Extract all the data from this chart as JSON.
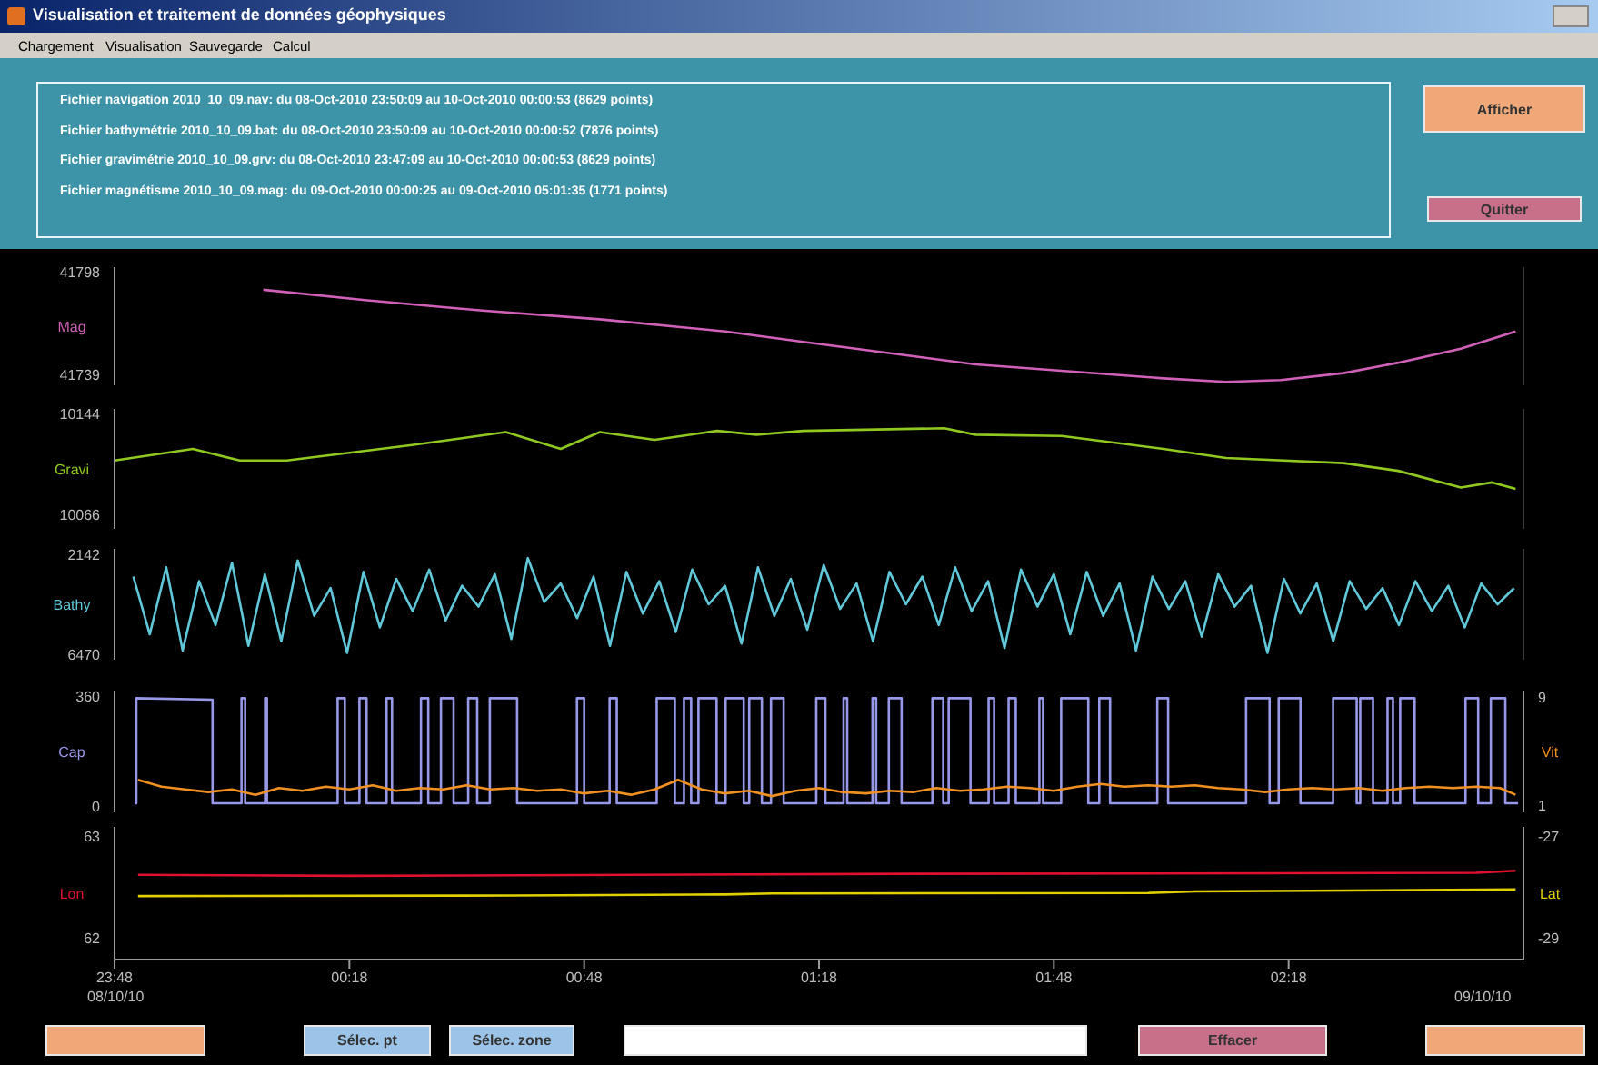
{
  "chart_data": [
    {
      "type": "line",
      "title": "Visualisation et traitement de données géophysiques",
      "ylabel": "Mag",
      "tick_labels": "y",
      "xlim": [
        "2010-10-08T23:48",
        "2010-10-09T02:48"
      ],
      "ylim": [
        41733,
        41801
      ],
      "yticks": [
        41739,
        41798
      ],
      "annotations": [
        "Chargement",
        "Visualisation",
        "Sauvegarde",
        "Calcul",
        "Fichier navigation  2010_10_09.nav: du 08-Oct-2010 23:50:09 au 10-Oct-2010 00:00:53  (8629 points)",
        "Fichier bathymétrie  2010_10_09.bat: du 08-Oct-2010 23:50:09 au 10-Oct-2010 00:00:52  (7876 points)",
        "Fichier gravimétrie  2010_10_09.grv: du 08-Oct-2010 23:47:09 au 10-Oct-2010 00:00:53  (8629 points)",
        "Fichier magnétisme 2010_10_09.mag: du 09-Oct-2010 00:00:25 au 09-Oct-2010 05:01:35  (1771 points)",
        "Afficher",
        "Quitter",
        "Sélec. pt",
        "Sélec. zone",
        "Effacer"
      ],
      "series": [
        {
          "color": "#d060b8",
          "x": [
            "2010-10-09T00:07",
            "2010-10-09T00:20",
            "2010-10-09T00:35",
            "2010-10-09T00:50",
            "2010-10-09T01:06",
            "2010-10-09T01:16",
            "2010-10-09T01:38",
            "2010-10-09T02:02",
            "2010-10-09T02:10",
            "2010-10-09T02:17",
            "2010-10-09T02:25",
            "2010-10-09T02:32",
            "2010-10-09T02:40",
            "2010-10-09T02:47"
          ],
          "values": [
            41788,
            41782,
            41776,
            41771,
            41764,
            41758,
            41745,
            41737,
            41735,
            41736,
            41740,
            41746,
            41754,
            41764
          ]
        }
      ]
    },
    {
      "type": "line",
      "ylabel": "Gravi",
      "tick_labels": "y",
      "xlim": [
        "2010-10-08T23:48",
        "2010-10-09T02:48"
      ],
      "ylim": [
        10055,
        10148
      ],
      "yticks": [
        10066,
        10144
      ],
      "series": [
        {
          "color": "#90c820",
          "x": [
            "2010-10-08T23:48",
            "2010-10-08T23:58",
            "2010-10-09T00:04",
            "2010-10-09T00:10",
            "2010-10-09T00:26",
            "2010-10-09T00:38",
            "2010-10-09T00:45",
            "2010-10-09T00:50",
            "2010-10-09T00:57",
            "2010-10-09T01:05",
            "2010-10-09T01:10",
            "2010-10-09T01:16",
            "2010-10-09T01:34",
            "2010-10-09T01:38",
            "2010-10-09T01:49",
            "2010-10-09T02:02",
            "2010-10-09T02:10",
            "2010-10-09T02:25",
            "2010-10-09T02:32",
            "2010-10-09T02:40",
            "2010-10-09T02:44",
            "2010-10-09T02:47"
          ],
          "values": [
            10108,
            10117,
            10108,
            10108,
            10120,
            10130,
            10117,
            10130,
            10124,
            10131,
            10128,
            10131,
            10133,
            10128,
            10127,
            10117,
            10110,
            10106,
            10100,
            10087,
            10091,
            10086
          ]
        }
      ]
    },
    {
      "type": "line",
      "ylabel": "Bathy",
      "tick_labels": "y",
      "xlim": [
        "2010-10-08T23:48",
        "2010-10-09T02:48"
      ],
      "ylim": [
        6700,
        1900
      ],
      "yticks": [
        2142,
        6470
      ],
      "series": [
        {
          "color": "#60c8d8",
          "x": [
            "2010-10-08T23:50:24",
            "2010-10-08T23:52:30",
            "2010-10-08T23:54:36",
            "2010-10-08T23:56:42",
            "2010-10-08T23:58:48",
            "2010-10-09T00:00:54",
            "2010-10-09T00:03:00",
            "2010-10-09T00:05:06",
            "2010-10-09T00:07:12",
            "2010-10-09T00:09:18",
            "2010-10-09T00:11:24",
            "2010-10-09T00:13:30",
            "2010-10-09T00:15:36",
            "2010-10-09T00:17:42",
            "2010-10-09T00:19:48",
            "2010-10-09T00:21:54",
            "2010-10-09T00:24:00",
            "2010-10-09T00:26:06",
            "2010-10-09T00:28:12",
            "2010-10-09T00:30:18",
            "2010-10-09T00:32:24",
            "2010-10-09T00:34:30",
            "2010-10-09T00:36:36",
            "2010-10-09T00:38:42",
            "2010-10-09T00:40:48",
            "2010-10-09T00:42:54",
            "2010-10-09T00:45:00",
            "2010-10-09T00:47:06",
            "2010-10-09T00:49:12",
            "2010-10-09T00:51:18",
            "2010-10-09T00:53:24",
            "2010-10-09T00:55:30",
            "2010-10-09T00:57:36",
            "2010-10-09T00:59:42",
            "2010-10-09T01:01:48",
            "2010-10-09T01:03:54",
            "2010-10-09T01:06:00",
            "2010-10-09T01:08:06",
            "2010-10-09T01:10:12",
            "2010-10-09T01:12:18",
            "2010-10-09T01:14:24",
            "2010-10-09T01:16:30",
            "2010-10-09T01:18:36",
            "2010-10-09T01:20:42",
            "2010-10-09T01:22:48",
            "2010-10-09T01:24:54",
            "2010-10-09T01:27:00",
            "2010-10-09T01:29:06",
            "2010-10-09T01:31:12",
            "2010-10-09T01:33:18",
            "2010-10-09T01:35:24",
            "2010-10-09T01:37:30",
            "2010-10-09T01:39:36",
            "2010-10-09T01:41:42",
            "2010-10-09T01:43:48",
            "2010-10-09T01:45:54",
            "2010-10-09T01:48:00",
            "2010-10-09T01:50:06",
            "2010-10-09T01:52:12",
            "2010-10-09T01:54:18",
            "2010-10-09T01:56:24",
            "2010-10-09T01:58:30",
            "2010-10-09T02:00:36",
            "2010-10-09T02:02:42",
            "2010-10-09T02:04:48",
            "2010-10-09T02:06:54",
            "2010-10-09T02:09:00",
            "2010-10-09T02:11:06",
            "2010-10-09T02:13:12",
            "2010-10-09T02:15:18",
            "2010-10-09T02:17:24",
            "2010-10-09T02:19:30",
            "2010-10-09T02:21:36",
            "2010-10-09T02:23:42",
            "2010-10-09T02:25:48",
            "2010-10-09T02:27:54",
            "2010-10-09T02:30:00",
            "2010-10-09T02:32:06",
            "2010-10-09T02:34:12",
            "2010-10-09T02:36:18",
            "2010-10-09T02:38:24",
            "2010-10-09T02:40:30",
            "2010-10-09T02:42:36",
            "2010-10-09T02:44:42",
            "2010-10-09T02:46:48"
          ],
          "values": [
            3100,
            5600,
            2700,
            6300,
            3300,
            5200,
            2500,
            6100,
            3000,
            5900,
            2400,
            4800,
            3600,
            6400,
            2900,
            5300,
            3200,
            4600,
            2800,
            5000,
            3500,
            4400,
            3000,
            5800,
            2300,
            4200,
            3400,
            4900,
            3100,
            6100,
            2900,
            4700,
            3300,
            5500,
            2800,
            4300,
            3500,
            6000,
            2700,
            4800,
            3200,
            5400,
            2600,
            4500,
            3400,
            5900,
            2900,
            4300,
            3100,
            5200,
            2700,
            4600,
            3300,
            6200,
            2800,
            4400,
            3000,
            5600,
            2900,
            4800,
            3400,
            6300,
            3100,
            4500,
            3300,
            5700,
            3000,
            4400,
            3500,
            6400,
            3200,
            4700,
            3400,
            5900,
            3300,
            4500,
            3600,
            5200,
            3300,
            4600,
            3500,
            5300,
            3400,
            4300,
            3600
          ]
        }
      ]
    },
    {
      "type": "line",
      "ylabel": "Cap",
      "y2label": "Vit",
      "tick_labels": "y",
      "xlim": [
        "2010-10-08T23:48",
        "2010-10-09T02:48"
      ],
      "ylim": [
        -20,
        380
      ],
      "yticks": [
        0,
        360
      ],
      "y2lim": [
        0.5,
        9.5
      ],
      "y2ticks": [
        1,
        9
      ],
      "series": [
        {
          "color": "#9898e8",
          "x": [
            "2010-10-08T23:50:33",
            "2010-10-08T23:50:47",
            "2010-10-08T23:50:47",
            "2010-10-09T00:00:31",
            "2010-10-09T00:00:31",
            "2010-10-09T00:04:13",
            "2010-10-09T00:04:13",
            "2010-10-09T00:04:41",
            "2010-10-09T00:04:41",
            "2010-10-09T00:07:14",
            "2010-10-09T00:07:14",
            "2010-10-09T00:07:28",
            "2010-10-09T00:07:28",
            "2010-10-09T00:16:30",
            "2010-10-09T00:16:30",
            "2010-10-09T00:17:25",
            "2010-10-09T00:17:25",
            "2010-10-09T00:19:17",
            "2010-10-09T00:19:17",
            "2010-10-09T00:20:12",
            "2010-10-09T00:20:12",
            "2010-10-09T00:22:45",
            "2010-10-09T00:22:45",
            "2010-10-09T00:23:27",
            "2010-10-09T00:23:27",
            "2010-10-09T00:27:09",
            "2010-10-09T00:27:09",
            "2010-10-09T00:28:05",
            "2010-10-09T00:28:05",
            "2010-10-09T00:29:42",
            "2010-10-09T00:29:42",
            "2010-10-09T00:31:19",
            "2010-10-09T00:31:19",
            "2010-10-09T00:33:11",
            "2010-10-09T00:33:11",
            "2010-10-09T00:34:20",
            "2010-10-09T00:34:20",
            "2010-10-09T00:35:57",
            "2010-10-09T00:35:57",
            "2010-10-09T00:39:26",
            "2010-10-09T00:39:26",
            "2010-10-09T00:47:05",
            "2010-10-09T00:47:05",
            "2010-10-09T00:48:00",
            "2010-10-09T00:48:00",
            "2010-10-09T00:51:15",
            "2010-10-09T00:51:15",
            "2010-10-09T00:52:10",
            "2010-10-09T00:52:10",
            "2010-10-09T00:57:16",
            "2010-10-09T00:57:16",
            "2010-10-09T00:59:35",
            "2010-10-09T00:59:35",
            "2010-10-09T01:00:45",
            "2010-10-09T01:00:45",
            "2010-10-09T01:01:40",
            "2010-10-09T01:01:40",
            "2010-10-09T01:02:36",
            "2010-10-09T01:02:36",
            "2010-10-09T01:04:55",
            "2010-10-09T01:04:55",
            "2010-10-09T01:06:04",
            "2010-10-09T01:06:04",
            "2010-10-09T01:08:23",
            "2010-10-09T01:08:23",
            "2010-10-09T01:09:05",
            "2010-10-09T01:09:05",
            "2010-10-09T01:10:42",
            "2010-10-09T01:10:42",
            "2010-10-09T01:11:52",
            "2010-10-09T01:11:52",
            "2010-10-09T01:13:29",
            "2010-10-09T01:13:29",
            "2010-10-09T01:17:39",
            "2010-10-09T01:17:39",
            "2010-10-09T01:18:49",
            "2010-10-09T01:18:49",
            "2010-10-09T01:21:08",
            "2010-10-09T01:21:08",
            "2010-10-09T01:21:36",
            "2010-10-09T01:21:36",
            "2010-10-09T01:24:50",
            "2010-10-09T01:24:50",
            "2010-10-09T01:25:18",
            "2010-10-09T01:25:18",
            "2010-10-09T01:26:55",
            "2010-10-09T01:26:55",
            "2010-10-09T01:28:33",
            "2010-10-09T01:28:33",
            "2010-10-09T01:32:29",
            "2010-10-09T01:32:29",
            "2010-10-09T01:33:52",
            "2010-10-09T01:33:52",
            "2010-10-09T01:34:34",
            "2010-10-09T01:34:34",
            "2010-10-09T01:37:21",
            "2010-10-09T01:37:21",
            "2010-10-09T01:39:40",
            "2010-10-09T01:39:40",
            "2010-10-09T01:40:22",
            "2010-10-09T01:40:22",
            "2010-10-09T01:42:13",
            "2010-10-09T01:42:13",
            "2010-10-09T01:43:08",
            "2010-10-09T01:43:08",
            "2010-10-09T01:46:09",
            "2010-10-09T01:46:09",
            "2010-10-09T01:46:37",
            "2010-10-09T01:46:37",
            "2010-10-09T01:48:56",
            "2010-10-09T01:48:56",
            "2010-10-09T01:52:24",
            "2010-10-09T01:52:24",
            "2010-10-09T01:53:48",
            "2010-10-09T01:53:48",
            "2010-10-09T01:55:11",
            "2010-10-09T01:55:11",
            "2010-10-09T02:01:13",
            "2010-10-09T02:01:13",
            "2010-10-09T02:02:36",
            "2010-10-09T02:02:36",
            "2010-10-09T02:12:34",
            "2010-10-09T02:12:34",
            "2010-10-09T02:15:34",
            "2010-10-09T02:15:34",
            "2010-10-09T02:16:44",
            "2010-10-09T02:16:44",
            "2010-10-09T02:19:31",
            "2010-10-09T02:19:31",
            "2010-10-09T02:23:41",
            "2010-10-09T02:23:41",
            "2010-10-09T02:26:42",
            "2010-10-09T02:26:42",
            "2010-10-09T02:27:09",
            "2010-10-09T02:27:09",
            "2010-10-09T02:28:47",
            "2010-10-09T02:28:47",
            "2010-10-09T02:30:38",
            "2010-10-09T02:30:38",
            "2010-10-09T02:31:20",
            "2010-10-09T02:31:20",
            "2010-10-09T02:32:15",
            "2010-10-09T02:32:15",
            "2010-10-09T02:34:06",
            "2010-10-09T02:34:06",
            "2010-10-09T02:40:36",
            "2010-10-09T02:40:36",
            "2010-10-09T02:42:13",
            "2010-10-09T02:42:13",
            "2010-10-09T02:43:50",
            "2010-10-09T02:43:50",
            "2010-10-09T02:45:41",
            "2010-10-09T02:45:41",
            "2010-10-09T02:47:19"
          ],
          "values": [
            10,
            10,
            355,
            350,
            10,
            10,
            355,
            355,
            10,
            10,
            355,
            355,
            10,
            10,
            355,
            355,
            10,
            10,
            355,
            355,
            10,
            10,
            355,
            355,
            10,
            10,
            355,
            355,
            10,
            10,
            355,
            355,
            10,
            10,
            355,
            355,
            10,
            10,
            355,
            355,
            10,
            10,
            355,
            355,
            10,
            10,
            355,
            355,
            10,
            10,
            355,
            355,
            10,
            10,
            355,
            355,
            10,
            10,
            355,
            355,
            10,
            10,
            355,
            355,
            10,
            10,
            355,
            355,
            10,
            10,
            355,
            355,
            10,
            10,
            355,
            355,
            10,
            10,
            355,
            355,
            10,
            10,
            355,
            355,
            10,
            10,
            355,
            355,
            10,
            10,
            355,
            355,
            10,
            10,
            355,
            355,
            10,
            10,
            355,
            355,
            10,
            10,
            355,
            355,
            10,
            10,
            355,
            355,
            10,
            10,
            355,
            355,
            10,
            10,
            355,
            355,
            10,
            10,
            355,
            355,
            10,
            10,
            355,
            355,
            10,
            10,
            355,
            355,
            10,
            10,
            355,
            355,
            10,
            10,
            355,
            355,
            10,
            10,
            355,
            355,
            10,
            10,
            355,
            355,
            10,
            10,
            355,
            355,
            10,
            10,
            355,
            355,
            10,
            10
          ]
        },
        {
          "color": "#f09020",
          "axis": "y2",
          "x": [
            "2010-10-08T23:51",
            "2010-10-08T23:54",
            "2010-10-08T23:57",
            "2010-10-09T00:00",
            "2010-10-09T00:03",
            "2010-10-09T00:06",
            "2010-10-09T00:09",
            "2010-10-09T00:12",
            "2010-10-09T00:15",
            "2010-10-09T00:18",
            "2010-10-09T00:21",
            "2010-10-09T00:24",
            "2010-10-09T00:27",
            "2010-10-09T00:30",
            "2010-10-09T00:33",
            "2010-10-09T00:36",
            "2010-10-09T00:39",
            "2010-10-09T00:42",
            "2010-10-09T00:45",
            "2010-10-09T00:48",
            "2010-10-09T00:51",
            "2010-10-09T00:54",
            "2010-10-09T00:57",
            "2010-10-09T01:00",
            "2010-10-09T01:03",
            "2010-10-09T01:06",
            "2010-10-09T01:09",
            "2010-10-09T01:12",
            "2010-10-09T01:15",
            "2010-10-09T01:18",
            "2010-10-09T01:21",
            "2010-10-09T01:24",
            "2010-10-09T01:27",
            "2010-10-09T01:30",
            "2010-10-09T01:33",
            "2010-10-09T01:36",
            "2010-10-09T01:39",
            "2010-10-09T01:42",
            "2010-10-09T01:45",
            "2010-10-09T01:48",
            "2010-10-09T01:51",
            "2010-10-09T01:54",
            "2010-10-09T01:57",
            "2010-10-09T02:00",
            "2010-10-09T02:03",
            "2010-10-09T02:06",
            "2010-10-09T02:09",
            "2010-10-09T02:12",
            "2010-10-09T02:15",
            "2010-10-09T02:18",
            "2010-10-09T02:21",
            "2010-10-09T02:24",
            "2010-10-09T02:27",
            "2010-10-09T02:30",
            "2010-10-09T02:33",
            "2010-10-09T02:36",
            "2010-10-09T02:39",
            "2010-10-09T02:42",
            "2010-10-09T02:45",
            "2010-10-09T02:47"
          ],
          "values": [
            2.9,
            2.4,
            2.2,
            2.0,
            2.2,
            1.8,
            2.3,
            2.1,
            2.4,
            2.2,
            2.5,
            2.1,
            2.3,
            2.2,
            2.5,
            2.2,
            2.3,
            2.1,
            2.2,
            1.9,
            2.1,
            1.8,
            2.2,
            2.9,
            2.2,
            1.9,
            2.1,
            1.7,
            2.1,
            2.3,
            2.0,
            1.9,
            2.1,
            2.0,
            2.3,
            2.1,
            2.2,
            2.4,
            2.3,
            2.1,
            2.4,
            2.6,
            2.4,
            2.5,
            2.4,
            2.5,
            2.3,
            2.2,
            2.0,
            2.2,
            2.3,
            2.2,
            2.3,
            2.1,
            2.3,
            2.4,
            2.3,
            2.4,
            2.3,
            1.8
          ]
        }
      ]
    },
    {
      "type": "line",
      "ylabel": "Lon",
      "y2label": "Lat",
      "xlim": [
        "2010-10-08T23:48",
        "2010-10-09T02:48"
      ],
      "xticks": [
        {
          "value": "2010-10-08T23:48",
          "label": "23:48"
        },
        {
          "value": "2010-10-09T00:18",
          "label": "00:18"
        },
        {
          "value": "2010-10-09T00:48",
          "label": "00:48"
        },
        {
          "value": "2010-10-09T01:18",
          "label": "01:18"
        },
        {
          "value": "2010-10-09T01:48",
          "label": "01:48"
        },
        {
          "value": "2010-10-09T02:18",
          "label": "02:18"
        }
      ],
      "ylim": [
        61.79,
        63.09
      ],
      "yticks": [
        62,
        63
      ],
      "y2lim": [
        -29.43,
        -26.82
      ],
      "y2ticks": [
        -29,
        -27
      ],
      "annotations": [
        "08/10/10",
        "09/10/10"
      ],
      "series": [
        {
          "color": "#e01030",
          "x": [
            "2010-10-08T23:51",
            "2010-10-09T00:18",
            "2010-10-09T01:30",
            "2010-10-09T02:42",
            "2010-10-09T02:47"
          ],
          "values": [
            62.62,
            62.61,
            62.63,
            62.64,
            62.66
          ]
        },
        {
          "color": "#e0d000",
          "axis": "y2",
          "x": [
            "2010-10-08T23:51",
            "2010-10-09T00:39",
            "2010-10-09T01:06",
            "2010-10-09T01:12",
            "2010-10-09T02:00",
            "2010-10-09T02:06",
            "2010-10-09T02:47"
          ],
          "values": [
            -28.18,
            -28.17,
            -28.15,
            -28.13,
            -28.12,
            -28.09,
            -28.05
          ]
        }
      ]
    }
  ]
}
